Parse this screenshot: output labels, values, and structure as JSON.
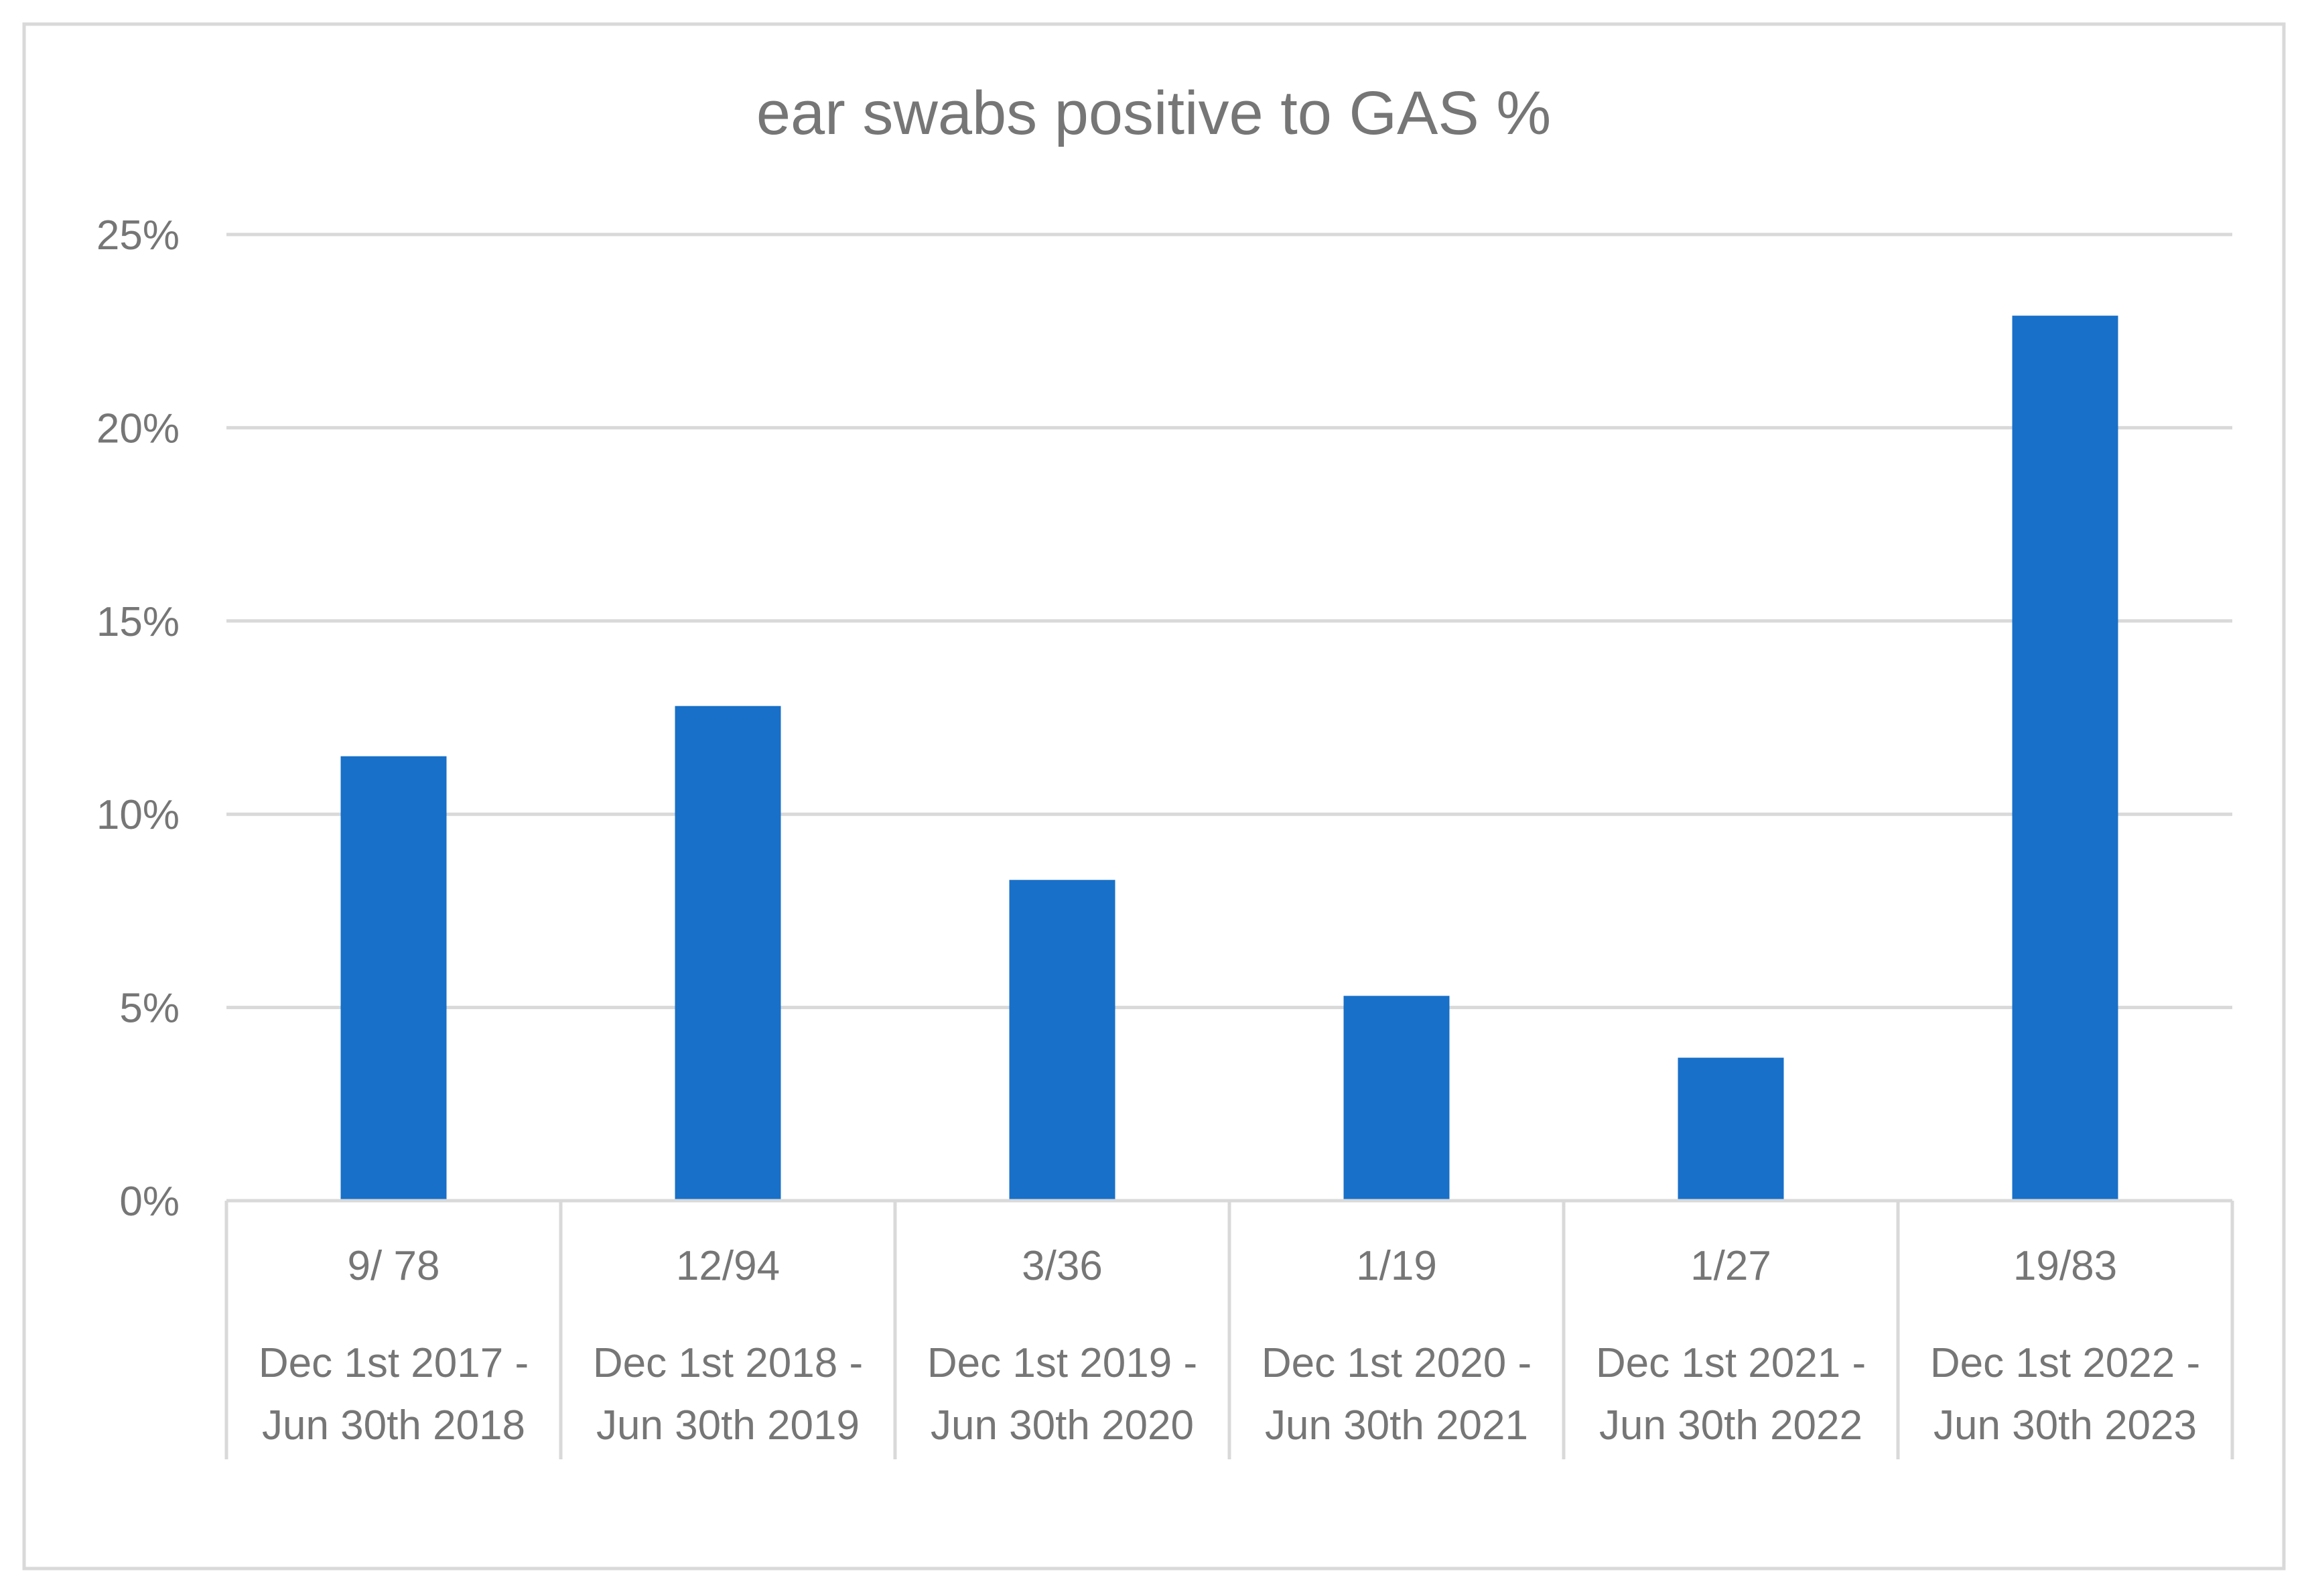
{
  "chart_data": {
    "type": "bar",
    "title": "ear swabs positive to GAS %",
    "xlabel": "",
    "ylabel": "",
    "ylim": [
      0,
      25
    ],
    "yticks": [
      "0%",
      "5%",
      "10%",
      "15%",
      "20%",
      "25%"
    ],
    "ytick_values": [
      0,
      5,
      10,
      15,
      20,
      25
    ],
    "grid": true,
    "legend": "none",
    "categories": [
      {
        "ratio": "9/ 78",
        "period_line1": "Dec 1st 2017 -",
        "period_line2": "Jun 30th 2018"
      },
      {
        "ratio": "12/94",
        "period_line1": "Dec 1st 2018 -",
        "period_line2": "Jun 30th 2019"
      },
      {
        "ratio": "3/36",
        "period_line1": "Dec 1st 2019 -",
        "period_line2": "Jun 30th 2020"
      },
      {
        "ratio": "1/19",
        "period_line1": "Dec 1st 2020 -",
        "period_line2": "Jun 30th 2021"
      },
      {
        "ratio": "1/27",
        "period_line1": "Dec 1st 2021 -",
        "period_line2": "Jun 30th 2022"
      },
      {
        "ratio": "19/83",
        "period_line1": "Dec 1st 2022 -",
        "period_line2": "Jun 30th 2023"
      }
    ],
    "values": [
      11.5,
      12.8,
      8.3,
      5.3,
      3.7,
      22.9
    ],
    "colors": {
      "bar": "#1870c8",
      "grid": "#d9d9d9",
      "axis": "#d9d9d9",
      "text": "#767676",
      "border": "#d9d9d9"
    }
  }
}
